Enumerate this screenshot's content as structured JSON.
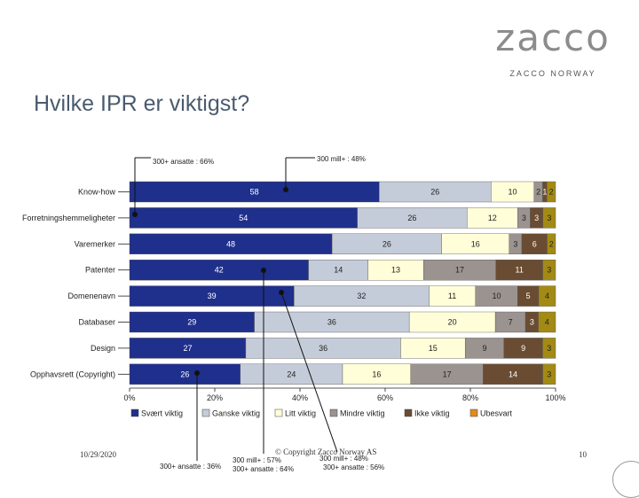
{
  "logo": {
    "word": "zacco",
    "sub": "ZACCO NORWAY"
  },
  "slide": {
    "title": "Hvilke IPR er viktigst?"
  },
  "footer": {
    "date": "10/29/2020",
    "copyright": "© Copyright Zacco Norway AS",
    "page": "10"
  },
  "callouts": [
    {
      "id": "c1",
      "text": "300+ ansatte : 66%"
    },
    {
      "id": "c2",
      "text": "300 mill+ : 48%"
    },
    {
      "id": "c3",
      "text": "300+ ansatte : 36%"
    },
    {
      "id": "c4",
      "text": "300 mill+ : 57%"
    },
    {
      "id": "c5",
      "text": "300+ ansatte : 64%"
    },
    {
      "id": "c6",
      "text": "300 mill+ : 48%"
    },
    {
      "id": "c7",
      "text": "300+ ansatte : 56%"
    }
  ],
  "colors": {
    "svaert": "#1f2f8c",
    "ganske": "#c5ccd9",
    "litt": "#fffed8",
    "mindre": "#9b9390",
    "ikke": "#6a4c33",
    "ubesvart": "#e28a1c",
    "last": "#a38a14"
  },
  "chart_data": {
    "type": "bar",
    "orientation": "horizontal",
    "stacked": true,
    "categories": [
      "Know-how",
      "Forretningshemmeligheter",
      "Varemerker",
      "Patenter",
      "Domenenavn",
      "Databaser",
      "Design",
      "Opphavsrett (Copyright)"
    ],
    "series": [
      {
        "name": "Svært viktig",
        "key": "svaert",
        "values": [
          58,
          54,
          48,
          42,
          39,
          29,
          27,
          26
        ]
      },
      {
        "name": "Ganske viktig",
        "key": "ganske",
        "values": [
          26,
          26,
          26,
          14,
          32,
          36,
          36,
          24
        ]
      },
      {
        "name": "Litt viktig",
        "key": "litt",
        "values": [
          10,
          12,
          16,
          13,
          11,
          20,
          15,
          16
        ]
      },
      {
        "name": "Mindre viktig",
        "key": "mindre",
        "values": [
          2,
          3,
          3,
          17,
          10,
          7,
          9,
          17
        ]
      },
      {
        "name": "Ikke viktig",
        "key": "ikke",
        "values": [
          1,
          3,
          6,
          11,
          5,
          3,
          9,
          14
        ]
      },
      {
        "name": "Ubesvart",
        "key": "ubesvart",
        "values": [
          2,
          3,
          2,
          3,
          4,
          4,
          3,
          3
        ]
      }
    ],
    "xlim": [
      0,
      100
    ],
    "xticks": [
      "0%",
      "20%",
      "40%",
      "60%",
      "80%",
      "100%"
    ],
    "legend_position": "bottom"
  }
}
